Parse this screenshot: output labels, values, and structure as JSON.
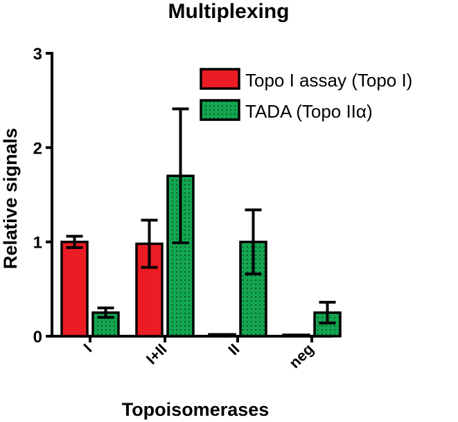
{
  "chart_data": {
    "type": "bar",
    "title": "Multiplexing",
    "xlabel": "Topoisomerases",
    "ylabel": "Relative signals",
    "categories": [
      "I",
      "I+II",
      "II",
      "neg"
    ],
    "ylim": [
      0,
      3
    ],
    "yticks": [
      0,
      1,
      2,
      3
    ],
    "legend_position": "top-right",
    "grid": false,
    "series": [
      {
        "name": "Topo I assay (Topo I)",
        "color": "#ec1c24",
        "pattern": "solid",
        "values": [
          1.0,
          0.98,
          0.02,
          0.01
        ],
        "errors": [
          0.06,
          0.25,
          0.0,
          0.0
        ]
      },
      {
        "name": "TADA (Topo IIα)",
        "color": "#13a550",
        "pattern": "dotted",
        "values": [
          0.25,
          1.7,
          1.0,
          0.25
        ],
        "errors": [
          0.05,
          0.71,
          0.34,
          0.11
        ]
      }
    ]
  }
}
